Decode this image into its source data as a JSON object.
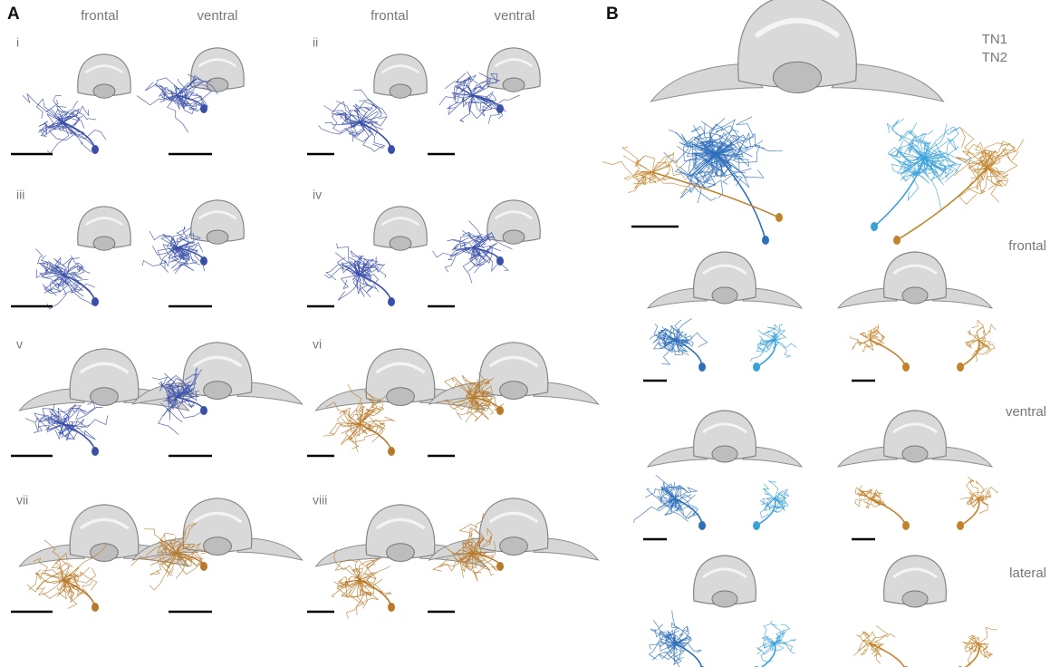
{
  "panel_a": {
    "label": "A",
    "column_headers": [
      "frontal",
      "ventral",
      "frontal",
      "ventral"
    ],
    "subpanels": [
      "i",
      "ii",
      "iii",
      "iv",
      "v",
      "vi",
      "vii",
      "viii"
    ]
  },
  "panel_b": {
    "label": "B",
    "legend": [
      {
        "name": "TN1",
        "color": "#2e6fba"
      },
      {
        "name": "TN2",
        "color": "#c2832a"
      }
    ],
    "view_labels": [
      "frontal",
      "ventral",
      "lateral"
    ]
  }
}
